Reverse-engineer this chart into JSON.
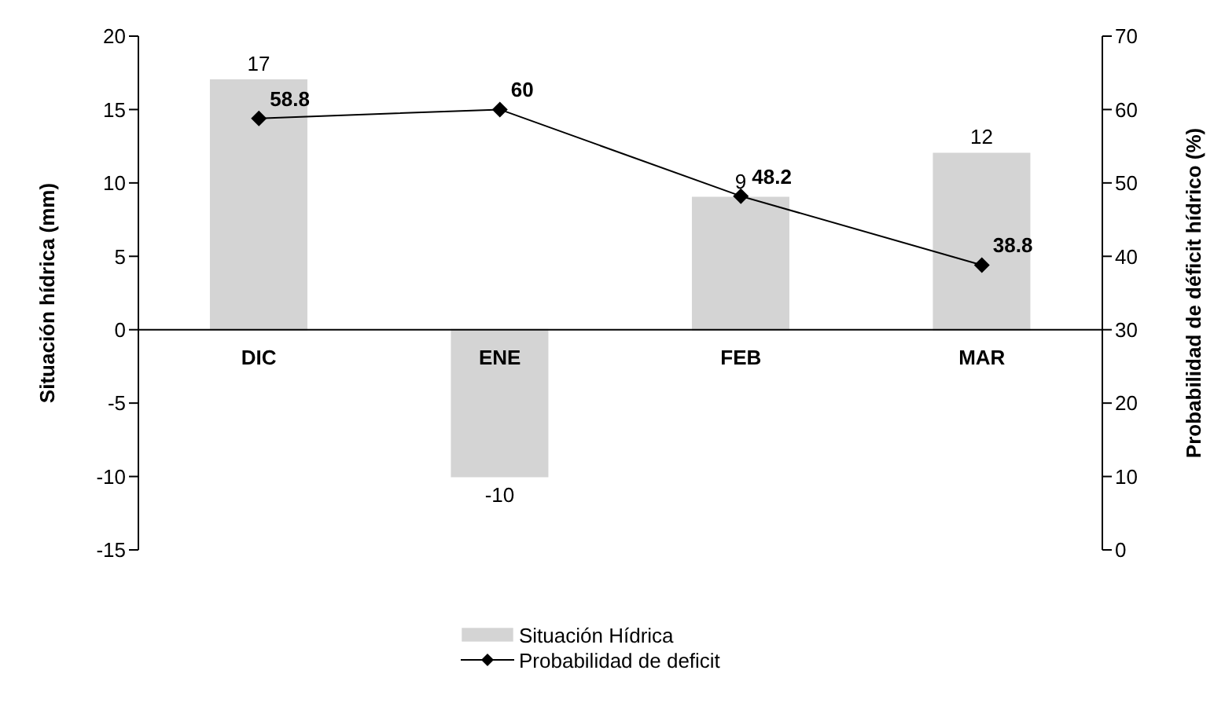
{
  "chart_data": {
    "type": "bar",
    "xlabel": null,
    "ylabel": "Situación hídrica (mm)",
    "y2label": "Probabilidad de déficit hídrico (%)",
    "categories": [
      "DIC",
      "ENE",
      "FEB",
      "MAR"
    ],
    "series": [
      {
        "name": "Situación Hídrica",
        "color": "#d4d4d4",
        "values": [
          17,
          -10,
          9,
          12
        ]
      },
      {
        "name": "Probabilidad de deficit",
        "type": "line",
        "axis": "y2",
        "color": "#000000",
        "values": [
          58.8,
          60,
          48.2,
          38.8
        ]
      }
    ],
    "ylim": [
      -15,
      20
    ],
    "yticks": [
      -15,
      -10,
      -5,
      0,
      5,
      10,
      15,
      20
    ],
    "y2lim": [
      0,
      70
    ],
    "y2ticks": [
      0,
      10,
      20,
      30,
      40,
      50,
      60,
      70
    ],
    "data_labels": true,
    "legend": "bottom",
    "marker": "diamond",
    "line_style": "solid"
  }
}
